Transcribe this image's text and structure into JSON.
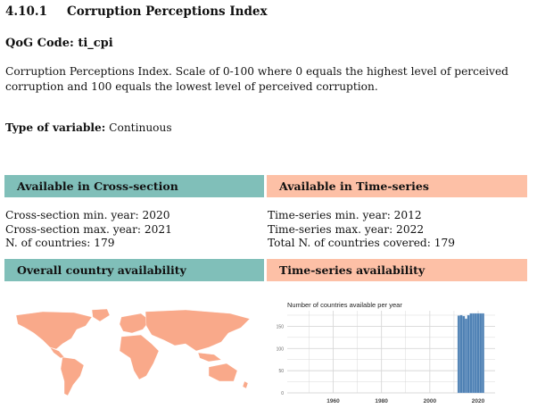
{
  "section": {
    "number": "4.10.1",
    "title": "Corruption Perceptions Index"
  },
  "qog_code": "QoG Code: ti_cpi",
  "description": "Corruption Perceptions Index. Scale of 0-100 where 0 equals the highest level of perceived corruption and 100 equals the lowest level of perceived corruption.",
  "type_label": "Type of variable:",
  "type_value": "Continuous",
  "cross_section": {
    "header": "Available in Cross-section",
    "min_year": "Cross-section min. year: 2020",
    "max_year": "Cross-section max. year: 2021",
    "countries": "N. of countries: 179"
  },
  "time_series": {
    "header": "Available in Time-series",
    "min_year": "Time-series min. year: 2012",
    "max_year": "Time-series max. year: 2022",
    "countries": "Total N. of countries covered: 179"
  },
  "map_header": "Overall country availability",
  "ts_header": "Time-series availability",
  "colors": {
    "teal": "#80bfb9",
    "salmon": "#fdc0a6",
    "map": "#f9a98a",
    "bar": "#4f81b4"
  },
  "chart_data": {
    "type": "bar",
    "title": "Number of countries available per year",
    "xlim": [
      1941,
      2027
    ],
    "ylim": [
      0,
      185
    ],
    "x_ticks": [
      1960,
      1980,
      2000,
      2020
    ],
    "y_ticks": [
      0,
      50,
      100,
      150
    ],
    "x": [
      2012,
      2013,
      2014,
      2015,
      2016,
      2017,
      2018,
      2019,
      2020,
      2021,
      2022
    ],
    "values": [
      174,
      175,
      173,
      167,
      175,
      179,
      179,
      179,
      179,
      179,
      179
    ]
  }
}
